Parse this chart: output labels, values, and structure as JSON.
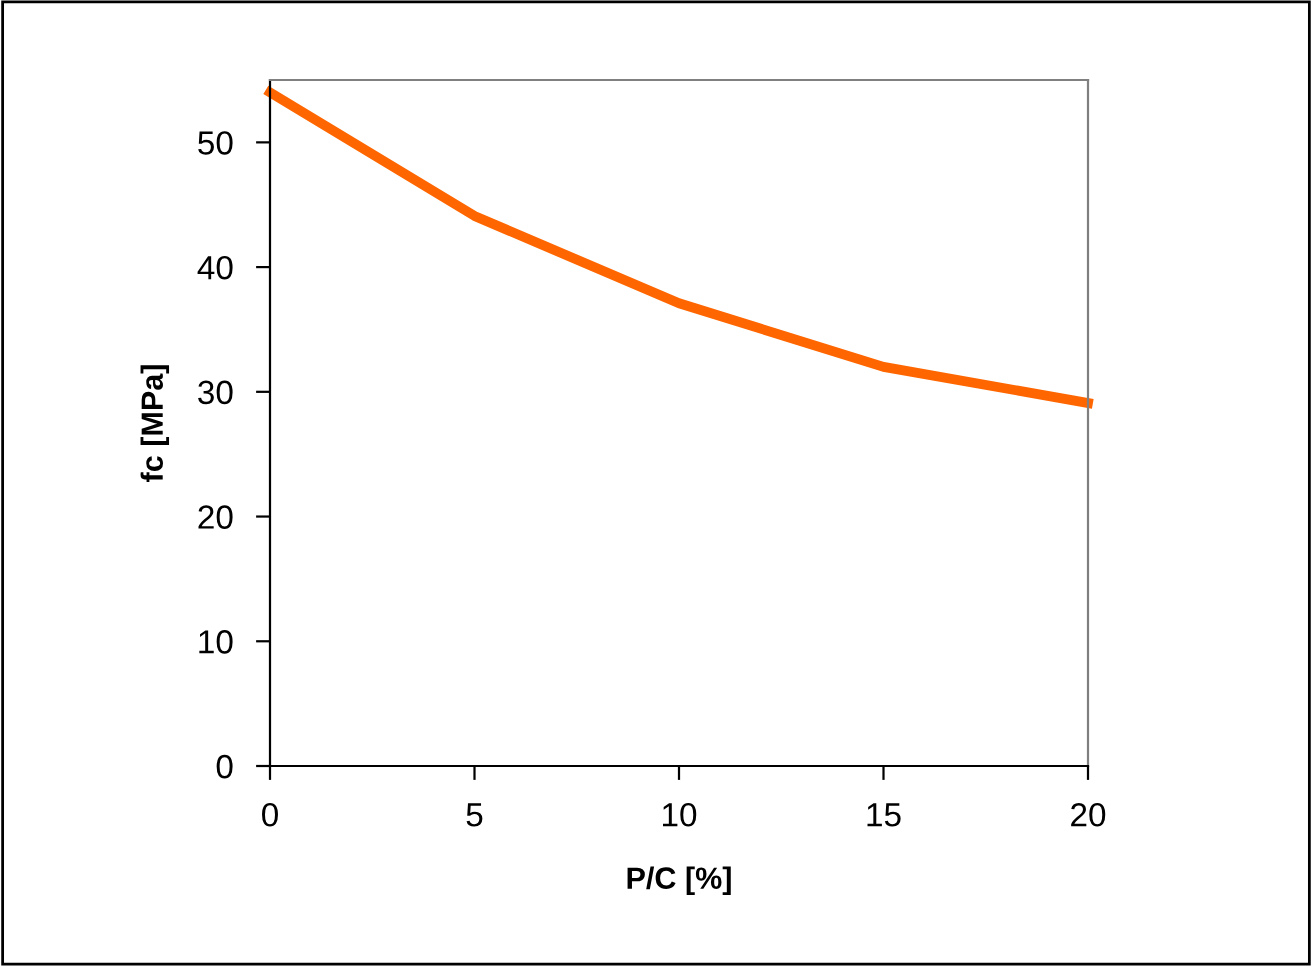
{
  "chart_data": {
    "type": "line",
    "xlabel": "P/C [%]",
    "ylabel": "fc [MPa]",
    "x": [
      0,
      5,
      10,
      15,
      20
    ],
    "series": [
      {
        "color": "#ff6600",
        "values": [
          54,
          44.1,
          37.1,
          32.0,
          29.1
        ]
      }
    ],
    "xlim": [
      0,
      20
    ],
    "xticks": [
      0,
      5,
      10,
      15,
      20
    ],
    "ylim": [
      0,
      55
    ],
    "yticks": [
      0,
      10,
      20,
      30,
      40,
      50
    ],
    "grid": false,
    "legend": false,
    "marker": "none",
    "line_style": "solid"
  }
}
